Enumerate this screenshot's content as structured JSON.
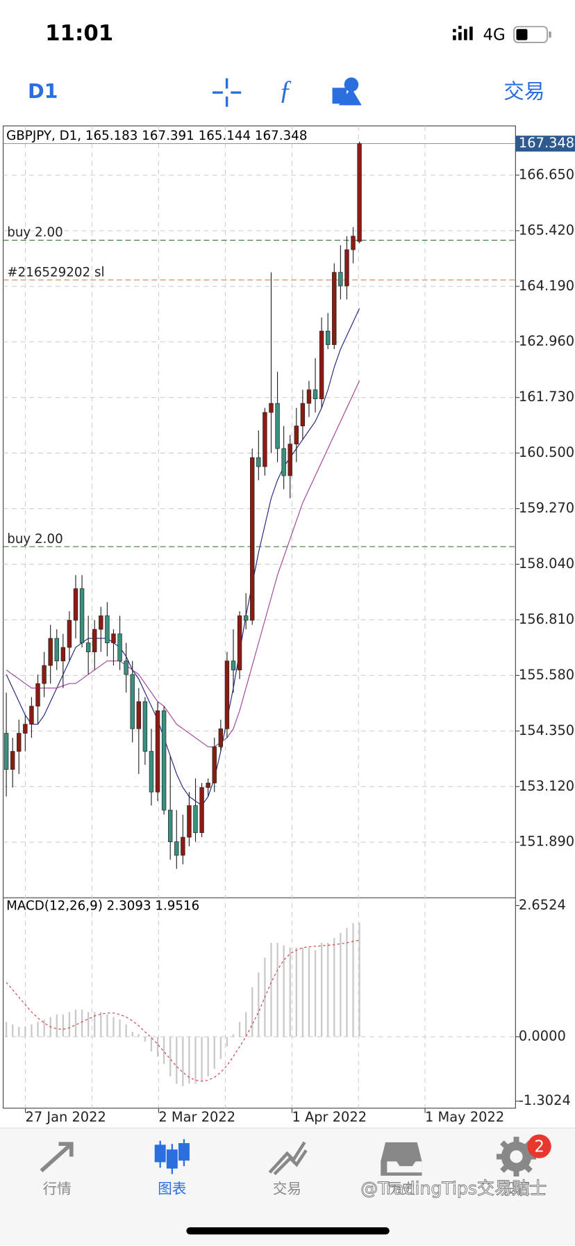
{
  "status_bar": {
    "time": "11:01",
    "network": "4G"
  },
  "toolbar": {
    "timeframe": "D1",
    "trade": "交易"
  },
  "chart_data": {
    "type": "candlestick",
    "title": "GBPJPY, D1, 165.183 167.391 165.144 167.348",
    "open": [
      154.3,
      153.5,
      153.9,
      154.3,
      154.5,
      154.9,
      155.4,
      155.8,
      156.4,
      155.9,
      156.2,
      156.8,
      157.5,
      156.3,
      156.1,
      156.6,
      156.9,
      156.3,
      156.5,
      155.9,
      155.6,
      154.4,
      155.0,
      153.9,
      153.0,
      154.8,
      152.6,
      151.9,
      151.6,
      152.0,
      152.7,
      152.1,
      153.1,
      153.2,
      154.0,
      154.4,
      155.9,
      155.7,
      156.9,
      156.8,
      160.4,
      160.2,
      161.4,
      161.6,
      160.6,
      160.0,
      160.7,
      161.1,
      161.6,
      161.9,
      161.7,
      163.2,
      162.9,
      164.5,
      164.2,
      165.0,
      165.183
    ],
    "high": [
      155.2,
      154.2,
      154.6,
      154.7,
      155.1,
      155.6,
      156.1,
      156.7,
      156.6,
      156.5,
      157.0,
      157.8,
      157.8,
      156.9,
      156.8,
      157.1,
      157.2,
      156.6,
      156.9,
      156.3,
      155.9,
      155.3,
      155.1,
      154.4,
      155.0,
      154.9,
      153.8,
      152.6,
      152.5,
      153.0,
      153.3,
      153.2,
      153.3,
      154.2,
      154.6,
      156.1,
      156.6,
      157.0,
      157.4,
      160.6,
      161.0,
      161.5,
      164.5,
      162.3,
      161.1,
      160.9,
      161.5,
      161.9,
      162.1,
      162.6,
      163.5,
      163.6,
      164.7,
      165.1,
      165.3,
      165.5,
      167.391
    ],
    "low": [
      152.9,
      153.1,
      153.4,
      153.9,
      154.2,
      154.5,
      155.1,
      155.4,
      155.7,
      155.3,
      155.9,
      156.4,
      156.2,
      155.6,
      155.7,
      156.1,
      156.0,
      155.8,
      155.7,
      155.2,
      154.1,
      153.4,
      153.6,
      152.7,
      152.8,
      152.5,
      151.5,
      151.3,
      151.4,
      151.8,
      151.9,
      152.0,
      152.9,
      153.0,
      153.9,
      154.2,
      155.2,
      155.5,
      156.6,
      156.7,
      159.9,
      160.0,
      160.5,
      160.3,
      159.7,
      159.5,
      160.3,
      160.8,
      161.3,
      161.4,
      161.5,
      162.8,
      162.8,
      163.9,
      163.9,
      164.7,
      165.144
    ],
    "close": [
      153.5,
      153.9,
      154.3,
      154.5,
      154.9,
      155.4,
      155.8,
      156.4,
      155.9,
      156.2,
      156.8,
      157.5,
      156.3,
      156.1,
      156.6,
      156.9,
      156.3,
      156.5,
      155.9,
      155.6,
      154.4,
      155.0,
      153.9,
      153.0,
      154.8,
      152.6,
      151.9,
      151.6,
      152.0,
      152.7,
      152.1,
      153.1,
      153.2,
      154.0,
      154.4,
      155.9,
      155.7,
      156.9,
      156.8,
      160.4,
      160.2,
      161.4,
      161.6,
      160.6,
      160.0,
      160.7,
      161.1,
      161.6,
      161.9,
      161.7,
      163.2,
      162.9,
      164.5,
      164.2,
      165.0,
      165.3,
      167.348
    ],
    "up_color": "#8b1c14",
    "down_color": "#3a8f7e",
    "moving_averages": [
      {
        "color": "#1c237e",
        "values": [
          155.6,
          155.3,
          155.0,
          154.7,
          154.5,
          154.5,
          154.7,
          155.0,
          155.3,
          155.6,
          155.9,
          156.2,
          156.3,
          156.4,
          156.4,
          156.4,
          156.4,
          156.3,
          156.2,
          156.0,
          155.7,
          155.5,
          155.2,
          154.9,
          154.6,
          154.2,
          153.8,
          153.4,
          153.1,
          152.9,
          152.8,
          152.7,
          152.9,
          153.3,
          153.9,
          154.6,
          155.3,
          156.1,
          156.9,
          157.6,
          158.3,
          158.9,
          159.5,
          159.9,
          160.2,
          160.4,
          160.6,
          160.8,
          161.0,
          161.2,
          161.5,
          161.9,
          162.4,
          162.8,
          163.1,
          163.4,
          163.7
        ]
      },
      {
        "color": "#a0409a",
        "values": [
          155.7,
          155.6,
          155.5,
          155.4,
          155.3,
          155.3,
          155.3,
          155.3,
          155.3,
          155.35,
          155.4,
          155.4,
          155.5,
          155.6,
          155.7,
          155.8,
          155.9,
          155.9,
          155.9,
          155.8,
          155.7,
          155.6,
          155.4,
          155.2,
          155.0,
          154.9,
          154.7,
          154.5,
          154.4,
          154.3,
          154.2,
          154.1,
          154.0,
          154.0,
          154.1,
          154.2,
          154.4,
          154.8,
          155.3,
          155.8,
          156.3,
          156.8,
          157.3,
          157.8,
          158.2,
          158.6,
          159.0,
          159.4,
          159.7,
          160.0,
          160.3,
          160.6,
          160.9,
          161.2,
          161.5,
          161.8,
          162.1
        ]
      }
    ],
    "last_price": 167.348,
    "levels": [
      {
        "value": 165.21,
        "label": "buy 2.00",
        "color": "#3f7d3f"
      },
      {
        "value": 158.43,
        "label": "buy 2.00",
        "color": "#3f7d3f"
      },
      {
        "value": 164.33,
        "label": "#216529202 sl",
        "color": "#d9804a"
      }
    ],
    "ylim": [
      150.66,
      167.74
    ],
    "yticks": [
      {
        "value": 166.65,
        "label": "166.650"
      },
      {
        "value": 165.42,
        "label": "165.420"
      },
      {
        "value": 164.19,
        "label": "164.190"
      },
      {
        "value": 162.96,
        "label": "162.960"
      },
      {
        "value": 161.73,
        "label": "161.730"
      },
      {
        "value": 160.5,
        "label": "160.500"
      },
      {
        "value": 159.27,
        "label": "159.270"
      },
      {
        "value": 158.04,
        "label": "158.040"
      },
      {
        "value": 156.81,
        "label": "156.810"
      },
      {
        "value": 155.58,
        "label": "155.580"
      },
      {
        "value": 154.35,
        "label": "154.350"
      },
      {
        "value": 153.12,
        "label": "153.120"
      },
      {
        "value": 151.89,
        "label": "151.890"
      }
    ],
    "xlim": [
      -0.5,
      80.75
    ],
    "xticks": [
      {
        "value": 3.02,
        "label": "27 Jan 2022"
      },
      {
        "value": 24.15,
        "label": "2 Mar 2022"
      },
      {
        "value": 45.3,
        "label": "1 Apr 2022"
      },
      {
        "value": 66.4,
        "label": "1 May 2022"
      }
    ],
    "grid": true,
    "macd": {
      "title": "MACD(12,26,9) 2.3093 1.9516",
      "histogram": [
        0.3,
        0.25,
        0.2,
        0.2,
        0.25,
        0.3,
        0.35,
        0.4,
        0.45,
        0.45,
        0.5,
        0.55,
        0.55,
        0.5,
        0.5,
        0.5,
        0.45,
        0.4,
        0.35,
        0.25,
        0.1,
        0.05,
        -0.1,
        -0.3,
        -0.4,
        -0.55,
        -0.8,
        -0.95,
        -1.0,
        -0.95,
        -0.95,
        -0.9,
        -0.8,
        -0.65,
        -0.45,
        -0.2,
        0.05,
        0.3,
        0.5,
        1.0,
        1.3,
        1.6,
        1.9,
        1.9,
        1.85,
        1.8,
        1.8,
        1.8,
        1.8,
        1.75,
        1.9,
        1.9,
        2.0,
        2.1,
        2.2,
        2.3,
        2.3093
      ],
      "signal": [
        1.1,
        0.95,
        0.8,
        0.65,
        0.5,
        0.38,
        0.28,
        0.2,
        0.16,
        0.15,
        0.18,
        0.24,
        0.3,
        0.36,
        0.42,
        0.46,
        0.48,
        0.48,
        0.45,
        0.4,
        0.32,
        0.22,
        0.1,
        -0.02,
        -0.15,
        -0.3,
        -0.45,
        -0.6,
        -0.72,
        -0.82,
        -0.88,
        -0.9,
        -0.88,
        -0.82,
        -0.72,
        -0.58,
        -0.4,
        -0.2,
        0.0,
        0.25,
        0.5,
        0.8,
        1.1,
        1.35,
        1.55,
        1.68,
        1.75,
        1.8,
        1.82,
        1.83,
        1.84,
        1.85,
        1.86,
        1.88,
        1.9,
        1.93,
        1.9516
      ],
      "histogram_color": "#c9c9c9",
      "signal_color": "#d23c3c",
      "ylim": [
        -1.445,
        2.779
      ],
      "yticks": [
        2.6524,
        {
          "value": 0,
          "label": "0.0000"
        },
        -1.3024
      ]
    }
  },
  "tab_bar": {
    "tabs": [
      "行情",
      "图表",
      "交易",
      "历史",
      "设置"
    ],
    "active": 1,
    "badge": 2
  },
  "watermark": "@TradingTips交易贴士"
}
